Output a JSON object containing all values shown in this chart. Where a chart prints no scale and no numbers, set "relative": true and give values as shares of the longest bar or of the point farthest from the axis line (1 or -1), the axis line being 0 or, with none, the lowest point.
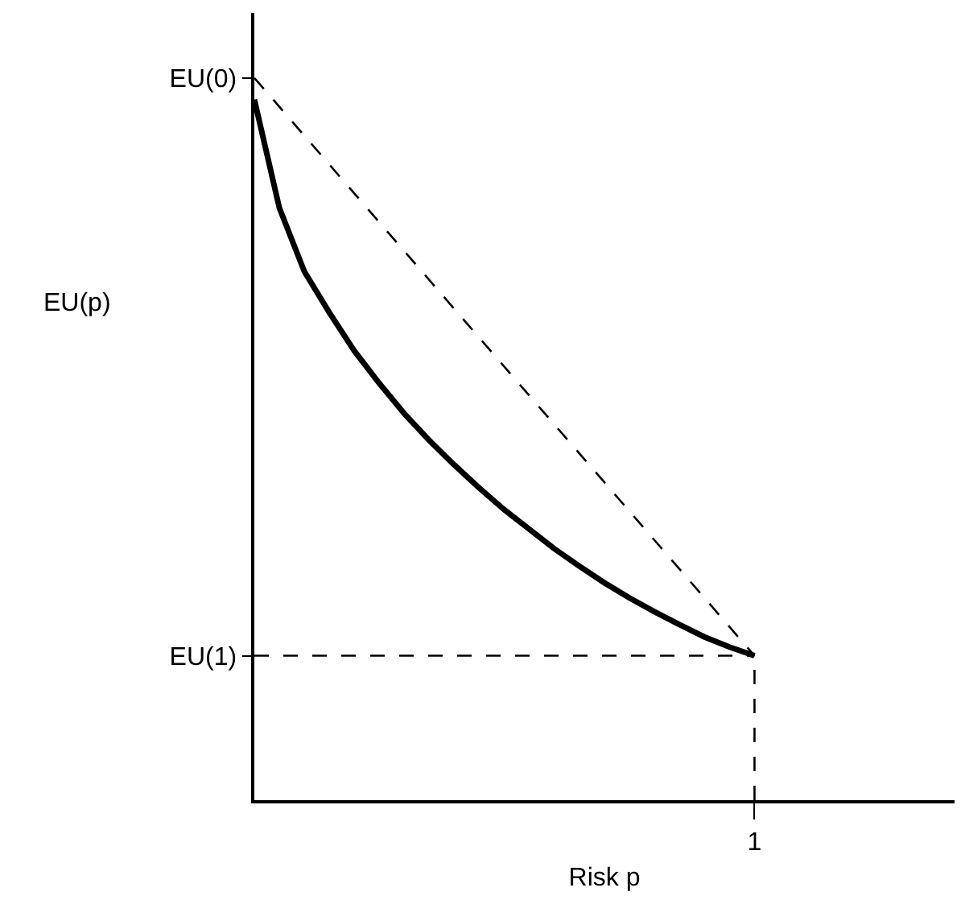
{
  "chart_data": {
    "type": "line",
    "relative": true,
    "xlabel": "Risk p",
    "categories": [
      null,
      null,
      null,
      null,
      null,
      null,
      null,
      null,
      null,
      null,
      null,
      null,
      null,
      null,
      null,
      null,
      null,
      null,
      null,
      null,
      null,
      null,
      null,
      null,
      null,
      null,
      null,
      null,
      null
    ],
    "annotations": [
      "EU(0)",
      "EU(1)",
      "1",
      "EU(p)"
    ],
    "marker": "none",
    "series": [
      {
        "color": "#000000",
        "line_style": "solid",
        "values": [
          0.97,
          0.82,
          0.732,
          0.675,
          0.622,
          0.577,
          0.535,
          0.498,
          0.464,
          0.432,
          0.402,
          0.375,
          0.348,
          0.324,
          0.301,
          0.28,
          0.261,
          0.243,
          0.226,
          0.212,
          0.2,
          null,
          null,
          null,
          null,
          null,
          null,
          null,
          null
        ]
      },
      {
        "color": "#000000",
        "line_style": "dashed",
        "values": [
          1,
          0.96,
          0.92,
          0.88,
          0.84,
          0.8,
          0.76,
          0.72,
          0.68,
          0.64,
          0.6,
          0.56,
          0.52,
          0.48,
          0.44,
          0.4,
          0.36,
          0.32,
          0.28,
          0.24,
          0.2,
          null,
          null,
          null,
          null,
          null,
          null,
          null,
          null
        ]
      },
      {
        "color": "#000000",
        "line_style": "dashed",
        "values": [
          0.2,
          0.2,
          0.2,
          0.2,
          0.2,
          0.2,
          0.2,
          0.2,
          0.2,
          0.2,
          0.2,
          0.2,
          0.2,
          0.2,
          0.2,
          0.2,
          0.2,
          0.2,
          0.2,
          0.2,
          0.2,
          null,
          null,
          null,
          null,
          null,
          null,
          null,
          null
        ]
      }
    ]
  }
}
